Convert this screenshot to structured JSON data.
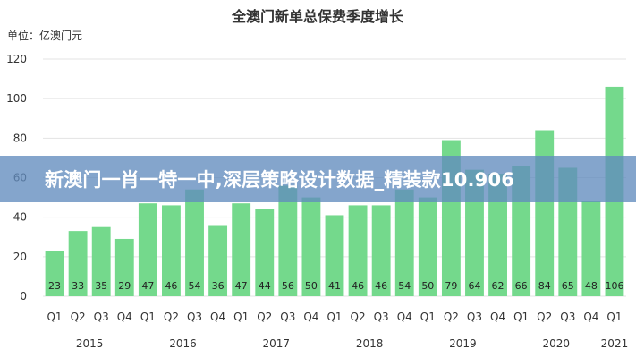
{
  "chart_data": {
    "type": "bar",
    "title": "全澳门新单总保费季度增长",
    "unit_label": "单位：亿澳门元",
    "ylim": [
      0,
      120
    ],
    "yticks": [
      0,
      20,
      40,
      60,
      80,
      100,
      120
    ],
    "grid": true,
    "colors": {
      "bar": "#74d98c",
      "grid": "#e3e3e3",
      "text": "#333333",
      "label": "#222222"
    },
    "categories": [
      "Q1",
      "Q2",
      "Q3",
      "Q4",
      "Q1",
      "Q2",
      "Q3",
      "Q4",
      "Q1",
      "Q2",
      "Q3",
      "Q4",
      "Q1",
      "Q2",
      "Q3",
      "Q4",
      "Q1",
      "Q2",
      "Q3",
      "Q4",
      "Q1",
      "Q2",
      "Q3",
      "Q4",
      "Q1"
    ],
    "years": [
      {
        "label": "2015",
        "start": 0,
        "count": 4
      },
      {
        "label": "2016",
        "start": 4,
        "count": 4
      },
      {
        "label": "2017",
        "start": 8,
        "count": 4
      },
      {
        "label": "2018",
        "start": 12,
        "count": 4
      },
      {
        "label": "2019",
        "start": 16,
        "count": 4
      },
      {
        "label": "2020",
        "start": 20,
        "count": 4
      },
      {
        "label": "2021",
        "start": 24,
        "count": 1
      }
    ],
    "values": [
      23,
      33,
      35,
      29,
      47,
      46,
      54,
      36,
      47,
      44,
      56,
      50,
      41,
      46,
      46,
      54,
      50,
      79,
      64,
      62,
      66,
      84,
      65,
      48,
      106
    ]
  },
  "overlay": {
    "banner_text": "新澳门一肖一特一中,深层策略设计数据_精装款10.906"
  }
}
